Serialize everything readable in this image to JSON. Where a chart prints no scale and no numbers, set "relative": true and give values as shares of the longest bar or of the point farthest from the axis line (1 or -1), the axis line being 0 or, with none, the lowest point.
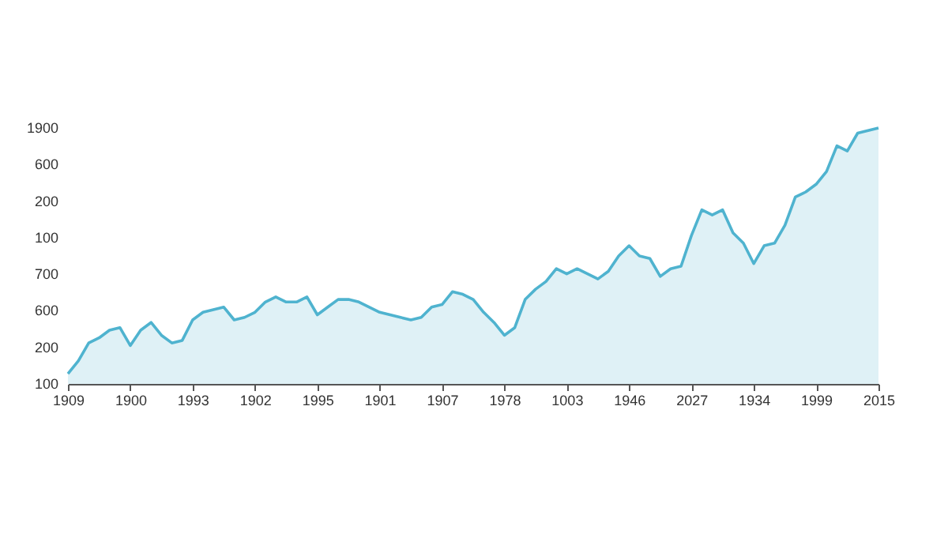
{
  "chart_data": {
    "type": "area",
    "relative": true,
    "grid": false,
    "categories": [
      "1909",
      null,
      null,
      null,
      null,
      null,
      "1900",
      null,
      null,
      null,
      null,
      null,
      "1993",
      null,
      null,
      null,
      null,
      null,
      "1902",
      null,
      null,
      null,
      null,
      null,
      "1995",
      null,
      null,
      null,
      null,
      null,
      "1901",
      null,
      null,
      null,
      null,
      null,
      "1907",
      null,
      null,
      null,
      null,
      null,
      "1978",
      null,
      null,
      null,
      null,
      null,
      "1003",
      null,
      null,
      null,
      null,
      null,
      "1946",
      null,
      null,
      null,
      null,
      null,
      "2027",
      null,
      null,
      null,
      null,
      null,
      "1934",
      null,
      null,
      null,
      null,
      null,
      "1999",
      null,
      null,
      null,
      null,
      null,
      "2015"
    ],
    "annotations": [
      "1900",
      "600",
      "200",
      "100",
      "700",
      "600",
      "200",
      "100"
    ],
    "series": [
      {
        "color": "#4fb3cf",
        "values": [
          0.04,
          0.09,
          0.16,
          0.18,
          0.21,
          0.22,
          0.15,
          0.21,
          0.24,
          0.19,
          0.16,
          0.17,
          0.25,
          0.28,
          0.29,
          0.3,
          0.25,
          0.26,
          0.28,
          0.32,
          0.34,
          0.32,
          0.32,
          0.34,
          0.27,
          0.3,
          0.33,
          0.33,
          0.32,
          0.3,
          0.28,
          0.27,
          0.26,
          0.25,
          0.26,
          0.3,
          0.31,
          0.36,
          0.35,
          0.33,
          0.28,
          0.24,
          0.19,
          0.22,
          0.33,
          0.37,
          0.4,
          0.45,
          0.43,
          0.45,
          0.43,
          0.41,
          0.44,
          0.5,
          0.54,
          0.5,
          0.49,
          0.42,
          0.45,
          0.46,
          0.58,
          0.68,
          0.66,
          0.68,
          0.59,
          0.55,
          0.47,
          0.54,
          0.55,
          0.62,
          0.73,
          0.75,
          0.78,
          0.83,
          0.93,
          0.91,
          0.98,
          0.99,
          1
        ]
      }
    ]
  }
}
